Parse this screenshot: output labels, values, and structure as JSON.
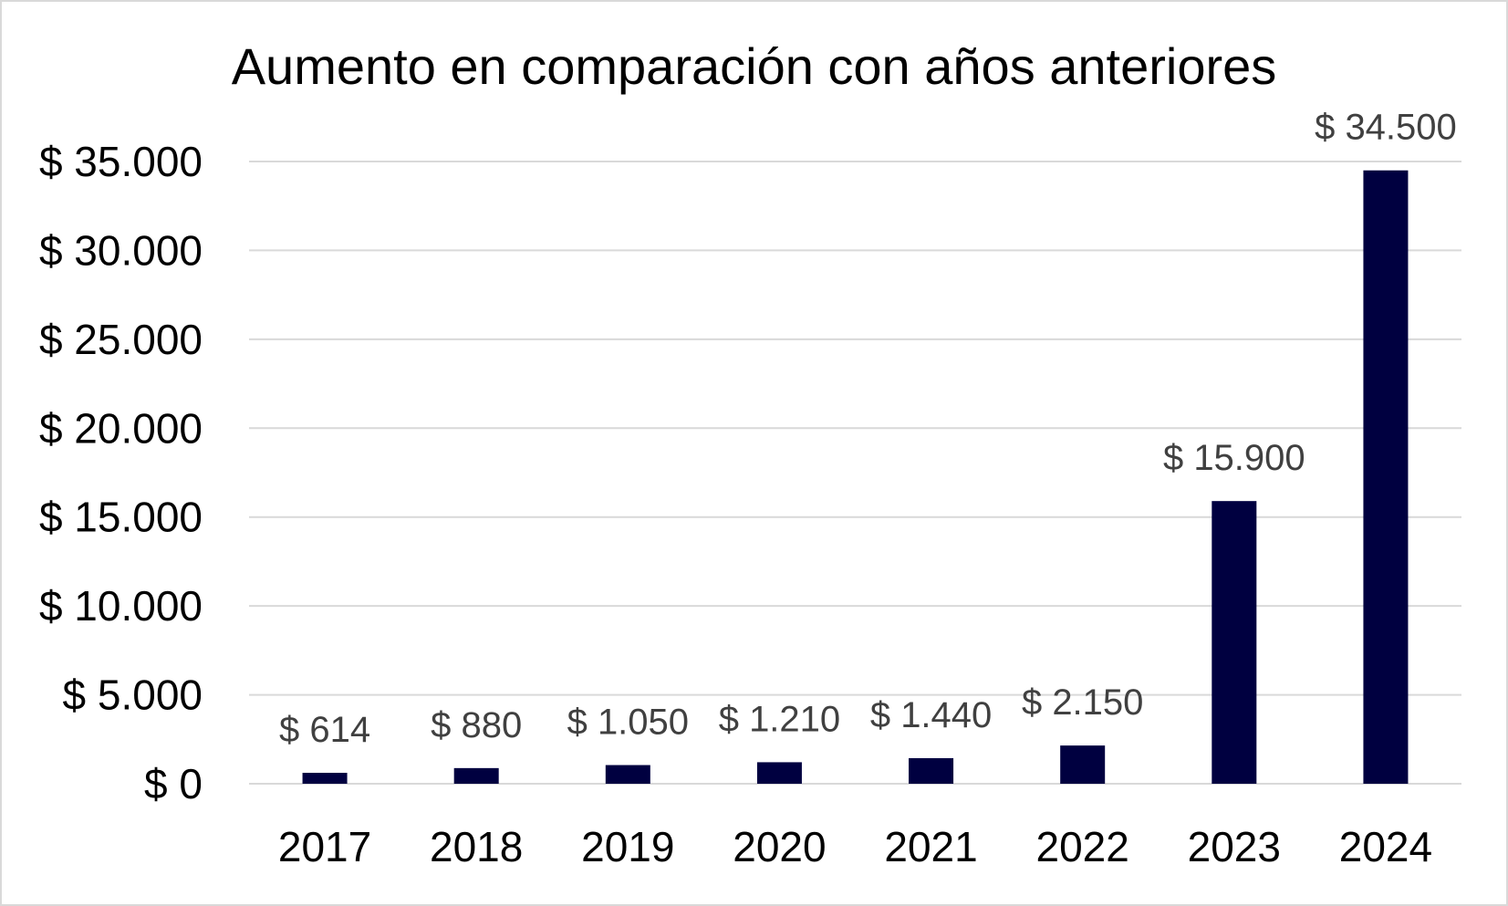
{
  "chart_data": {
    "type": "bar",
    "title": "Aumento en comparación con años anteriores",
    "xlabel": "",
    "ylabel": "",
    "categories": [
      "2017",
      "2018",
      "2019",
      "2020",
      "2021",
      "2022",
      "2023",
      "2024"
    ],
    "values": [
      614,
      880,
      1050,
      1210,
      1440,
      2150,
      15900,
      34500
    ],
    "data_labels": [
      "$ 614",
      "$ 880",
      "$ 1.050",
      "$ 1.210",
      "$ 1.440",
      "$ 2.150",
      "$ 15.900",
      "$ 34.500"
    ],
    "ylim": [
      0,
      35000
    ],
    "yticks": [
      0,
      5000,
      10000,
      15000,
      20000,
      25000,
      30000,
      35000
    ],
    "ytick_labels": [
      "$ 0",
      "$ 5.000",
      "$ 10.000",
      "$ 15.000",
      "$ 20.000",
      "$ 25.000",
      "$ 30.000",
      "$ 35.000"
    ],
    "grid": true,
    "legend": "none",
    "colors": {
      "bar": "#000040",
      "grid": "#d9d9d9",
      "data_label": "#404040",
      "frame": "#d9d9d9"
    }
  }
}
